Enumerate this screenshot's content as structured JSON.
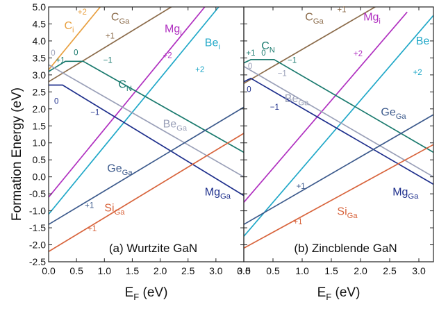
{
  "chart_data": {
    "type": "line",
    "ylabel": "Formation Energy (eV)",
    "ylim": [
      -2.5,
      5.0
    ],
    "yticks": [
      "-2.5",
      "-2.0",
      "-1.5",
      "-1.0",
      "-0.5",
      "0.0",
      "0.5",
      "1.0",
      "1.5",
      "2.0",
      "2.5",
      "3.0",
      "3.5",
      "4.0",
      "4.5",
      "5.0"
    ],
    "yticks_values": [
      -2.5,
      -2.0,
      -1.5,
      -1.0,
      -0.5,
      0.0,
      0.5,
      1.0,
      1.5,
      2.0,
      2.5,
      3.0,
      3.5,
      4.0,
      4.5,
      5.0
    ],
    "panels": [
      {
        "title": "(a) Wurtzite GaN",
        "xlabel_main": "E",
        "xlabel_sub": "F",
        "xlabel_unit": " (eV)",
        "xlim": [
          0,
          3.5
        ],
        "xticks": [
          "0.0",
          "0.5",
          "1.0",
          "1.5",
          "2.0",
          "2.5",
          "3.0",
          "3.5"
        ],
        "xticks_values": [
          0,
          0.5,
          1.0,
          1.5,
          2.0,
          2.5,
          3.0,
          3.5
        ],
        "series": [
          {
            "id": "Ci",
            "color": "#E8A040",
            "points": [
              [
                0,
                3.15
              ],
              [
                1.0,
                5.15
              ]
            ]
          },
          {
            "id": "CGa",
            "color": "#8B6B4A",
            "points": [
              [
                0,
                2.8
              ],
              [
                2.4,
                5.2
              ]
            ]
          },
          {
            "id": "Mgi",
            "color": "#B030C0",
            "points": [
              [
                0,
                -0.6
              ],
              [
                2.8,
                5.0
              ]
            ]
          },
          {
            "id": "Bei",
            "color": "#20A8C8",
            "points": [
              [
                0,
                -1.1
              ],
              [
                3.1,
                5.1
              ]
            ]
          },
          {
            "id": "CN",
            "color": "#1A7A6E",
            "points": [
              [
                0,
                3.1
              ],
              [
                0.3,
                3.4
              ],
              [
                0.62,
                3.4
              ],
              [
                3.5,
                0.72
              ]
            ]
          },
          {
            "id": "BeGa",
            "color": "#9AA0B8",
            "points": [
              [
                0,
                3.3
              ],
              [
                3.5,
                0.0
              ]
            ]
          },
          {
            "id": "MgGa",
            "color": "#1E2F8C",
            "points": [
              [
                0,
                2.7
              ],
              [
                0.25,
                2.7
              ],
              [
                3.5,
                -0.55
              ]
            ]
          },
          {
            "id": "GeGa",
            "color": "#3C5A8C",
            "points": [
              [
                0,
                -1.4
              ],
              [
                3.5,
                2.05
              ]
            ]
          },
          {
            "id": "SiGa",
            "color": "#D8643C",
            "points": [
              [
                0,
                -2.2
              ],
              [
                3.5,
                1.28
              ]
            ]
          }
        ],
        "labels": [
          {
            "id": "Ci",
            "main": "C",
            "sub": "i",
            "color": "#E8A040",
            "x": 0.28,
            "y": 4.35
          },
          {
            "id": "CGa",
            "main": "C",
            "sub": "Ga",
            "color": "#8B6B4A",
            "x": 1.12,
            "y": 4.6
          },
          {
            "id": "Mgi",
            "main": "Mg",
            "sub": "i",
            "color": "#B030C0",
            "x": 2.08,
            "y": 4.25
          },
          {
            "id": "Bei",
            "main": "Be",
            "sub": "i",
            "color": "#20A8C8",
            "x": 2.8,
            "y": 3.85
          },
          {
            "id": "CN",
            "main": "C",
            "sub": "N",
            "color": "#1A7A6E",
            "x": 1.25,
            "y": 2.62
          },
          {
            "id": "BeGa",
            "main": "Be",
            "sub": "Ga",
            "color": "#9AA0B8",
            "x": 2.05,
            "y": 1.45
          },
          {
            "id": "MgGa",
            "main": "Mg",
            "sub": "Ga",
            "color": "#1E2F8C",
            "x": 2.8,
            "y": -0.55
          },
          {
            "id": "GeGa",
            "main": "Ge",
            "sub": "Ga",
            "color": "#3C5A8C",
            "x": 1.05,
            "y": 0.15
          },
          {
            "id": "SiGa",
            "main": "Si",
            "sub": "Ga",
            "color": "#D8643C",
            "x": 1.0,
            "y": -1.02
          }
        ],
        "charges": [
          {
            "text": "+2",
            "color": "#E8A040",
            "x": 0.52,
            "y": 4.78
          },
          {
            "text": "+1",
            "color": "#8B6B4A",
            "x": 1.02,
            "y": 4.07
          },
          {
            "text": "+2",
            "color": "#B030C0",
            "x": 2.05,
            "y": 3.5
          },
          {
            "text": "+2",
            "color": "#20A8C8",
            "x": 2.63,
            "y": 3.08
          },
          {
            "text": "0",
            "color": "#9AA0B8",
            "x": 0.04,
            "y": 3.57
          },
          {
            "text": "+1",
            "color": "#1A7A6E",
            "x": 0.13,
            "y": 3.35
          },
          {
            "text": "0",
            "color": "#1A7A6E",
            "x": 0.45,
            "y": 3.58
          },
          {
            "text": "−1",
            "color": "#1A7A6E",
            "x": 0.98,
            "y": 3.35
          },
          {
            "text": "0",
            "color": "#1E2F8C",
            "x": 0.1,
            "y": 2.15
          },
          {
            "text": "−1",
            "color": "#1E2F8C",
            "x": 0.75,
            "y": 1.82
          },
          {
            "text": "+1",
            "color": "#3C5A8C",
            "x": 0.65,
            "y": -0.92
          },
          {
            "text": "+1",
            "color": "#D8643C",
            "x": 0.7,
            "y": -1.6
          }
        ]
      },
      {
        "title": "(b) Zincblende GaN",
        "xlabel_main": "E",
        "xlabel_sub": "F",
        "xlabel_unit": " (eV)",
        "xlim": [
          0,
          3.25
        ],
        "xticks": [
          "0.0",
          "0.5",
          "1.0",
          "1.5",
          "2.0",
          "2.5",
          "3.0"
        ],
        "xticks_values": [
          0,
          0.5,
          1.0,
          1.5,
          2.0,
          2.5,
          3.0
        ],
        "series": [
          {
            "id": "CGa",
            "color": "#8B6B4A",
            "points": [
              [
                0,
                2.75
              ],
              [
                2.4,
                5.15
              ]
            ]
          },
          {
            "id": "Mgi",
            "color": "#B030C0",
            "points": [
              [
                0,
                -0.75
              ],
              [
                2.8,
                4.85
              ]
            ]
          },
          {
            "id": "Bei",
            "color": "#20A8C8",
            "points": [
              [
                0,
                -1.75
              ],
              [
                3.25,
                4.75
              ]
            ]
          },
          {
            "id": "CN",
            "color": "#1A7A6E",
            "points": [
              [
                0,
                3.35
              ],
              [
                0.12,
                3.45
              ],
              [
                0.52,
                3.45
              ],
              [
                3.25,
                0.72
              ]
            ]
          },
          {
            "id": "BeGa",
            "color": "#9AA0B8",
            "points": [
              [
                0,
                3.25
              ],
              [
                3.25,
                0.0
              ]
            ]
          },
          {
            "id": "MgGa",
            "color": "#1E2F8C",
            "points": [
              [
                0,
                2.8
              ],
              [
                0.12,
                2.9
              ],
              [
                3.25,
                -0.22
              ]
            ]
          },
          {
            "id": "GeGa",
            "color": "#3C5A8C",
            "points": [
              [
                0,
                -1.4
              ],
              [
                3.25,
                1.83
              ]
            ]
          },
          {
            "id": "SiGa",
            "color": "#D8643C",
            "points": [
              [
                0,
                -2.1
              ],
              [
                3.25,
                0.95
              ]
            ]
          }
        ],
        "labels": [
          {
            "id": "CGa",
            "main": "C",
            "sub": "Ga",
            "color": "#8B6B4A",
            "x": 1.05,
            "y": 4.6
          },
          {
            "id": "Mgi",
            "main": "Mg",
            "sub": "i",
            "color": "#B030C0",
            "x": 2.05,
            "y": 4.6
          },
          {
            "id": "Bei",
            "main": "Be",
            "sub": "",
            "color": "#20A8C8",
            "x": 2.95,
            "y": 3.9
          },
          {
            "id": "CN",
            "main": "C",
            "sub": "N",
            "color": "#1A7A6E",
            "x": 0.3,
            "y": 3.75
          },
          {
            "id": "BeGa",
            "main": "Be",
            "sub": "Ga",
            "color": "#9AA0B8",
            "x": 0.7,
            "y": 2.2
          },
          {
            "id": "MgGa",
            "main": "Mg",
            "sub": "Ga",
            "color": "#1E2F8C",
            "x": 2.55,
            "y": -0.55
          },
          {
            "id": "GeGa",
            "main": "Ge",
            "sub": "Ga",
            "color": "#3C5A8C",
            "x": 2.35,
            "y": 1.8
          },
          {
            "id": "SiGa",
            "main": "Si",
            "sub": "Ga",
            "color": "#D8643C",
            "x": 1.6,
            "y": -1.12
          }
        ],
        "charges": [
          {
            "text": "+1",
            "color": "#8B6B4A",
            "x": 1.6,
            "y": 4.85
          },
          {
            "text": "+2",
            "color": "#B030C0",
            "x": 1.88,
            "y": 3.55
          },
          {
            "text": "+2",
            "color": "#20A8C8",
            "x": 2.9,
            "y": 3.0
          },
          {
            "text": "+1",
            "color": "#1A7A6E",
            "x": 0.04,
            "y": 3.57
          },
          {
            "text": "0",
            "color": "#1A7A6E",
            "x": 0.3,
            "y": 3.57
          },
          {
            "text": "0",
            "color": "#9AA0B8",
            "x": 0.07,
            "y": 3.18
          },
          {
            "text": "−1",
            "color": "#1A7A6E",
            "x": 0.75,
            "y": 3.35
          },
          {
            "text": "−1",
            "color": "#9AA0B8",
            "x": 0.58,
            "y": 2.97
          },
          {
            "text": "0",
            "color": "#1E2F8C",
            "x": 0.05,
            "y": 2.5
          },
          {
            "text": "−1",
            "color": "#1E2F8C",
            "x": 0.45,
            "y": 1.98
          },
          {
            "text": "+1",
            "color": "#3C5A8C",
            "x": 0.9,
            "y": -0.35
          },
          {
            "text": "+1",
            "color": "#D8643C",
            "x": 0.85,
            "y": -1.4
          }
        ]
      }
    ]
  }
}
